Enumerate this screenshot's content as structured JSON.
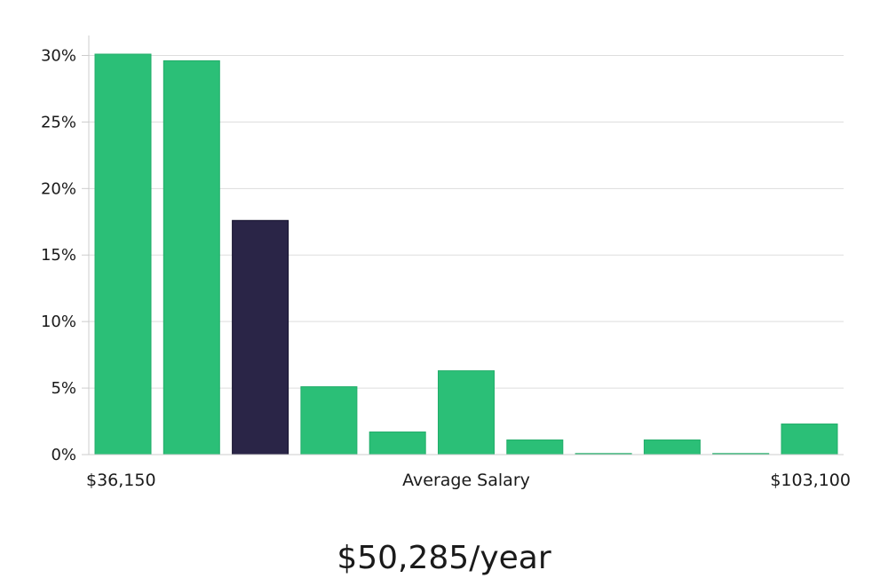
{
  "chart_data": {
    "type": "bar",
    "title": "",
    "xlabel": "Average Salary",
    "ylabel": "",
    "x_min_label": "$36,150",
    "x_max_label": "$103,100",
    "ylim": [
      0,
      31.5
    ],
    "yticks": [
      0,
      5,
      10,
      15,
      20,
      25,
      30
    ],
    "ytick_labels": [
      "0%",
      "5%",
      "10%",
      "15%",
      "20%",
      "25%",
      "30%"
    ],
    "grid": true,
    "values": [
      30.1,
      29.6,
      17.6,
      5.1,
      1.7,
      6.3,
      1.1,
      0.05,
      1.1,
      0.05,
      2.3
    ],
    "highlight_index": 2,
    "colors": {
      "bar": "#2bbf77",
      "highlight": "#2a2547",
      "grid": "#dddddd",
      "axis": "#cccccc"
    }
  },
  "summary": {
    "salary_text": "$50,285/year"
  }
}
